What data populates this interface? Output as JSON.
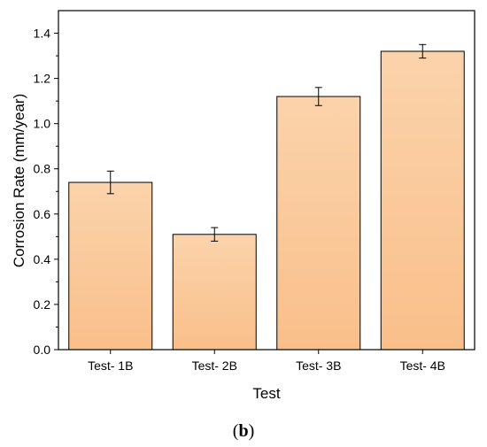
{
  "chart_data": {
    "type": "bar",
    "categories": [
      "Test- 1B",
      "Test- 2B",
      "Test- 3B",
      "Test- 4B"
    ],
    "values": [
      0.74,
      0.51,
      1.12,
      1.32
    ],
    "errors": [
      0.05,
      0.03,
      0.04,
      0.03
    ],
    "xlabel": "Test",
    "ylabel": "Corrosion Rate (mm/year)",
    "ylim": [
      0,
      1.5
    ],
    "yticks": [
      "0.0",
      "0.2",
      "0.4",
      "0.6",
      "0.8",
      "1.0",
      "1.2",
      "1.4"
    ],
    "grid": false,
    "bar_color_top": "#fbd3ab",
    "bar_color_bottom": "#f9bf8a"
  },
  "caption": {
    "open": "(",
    "letter": "b",
    "close": ")"
  }
}
